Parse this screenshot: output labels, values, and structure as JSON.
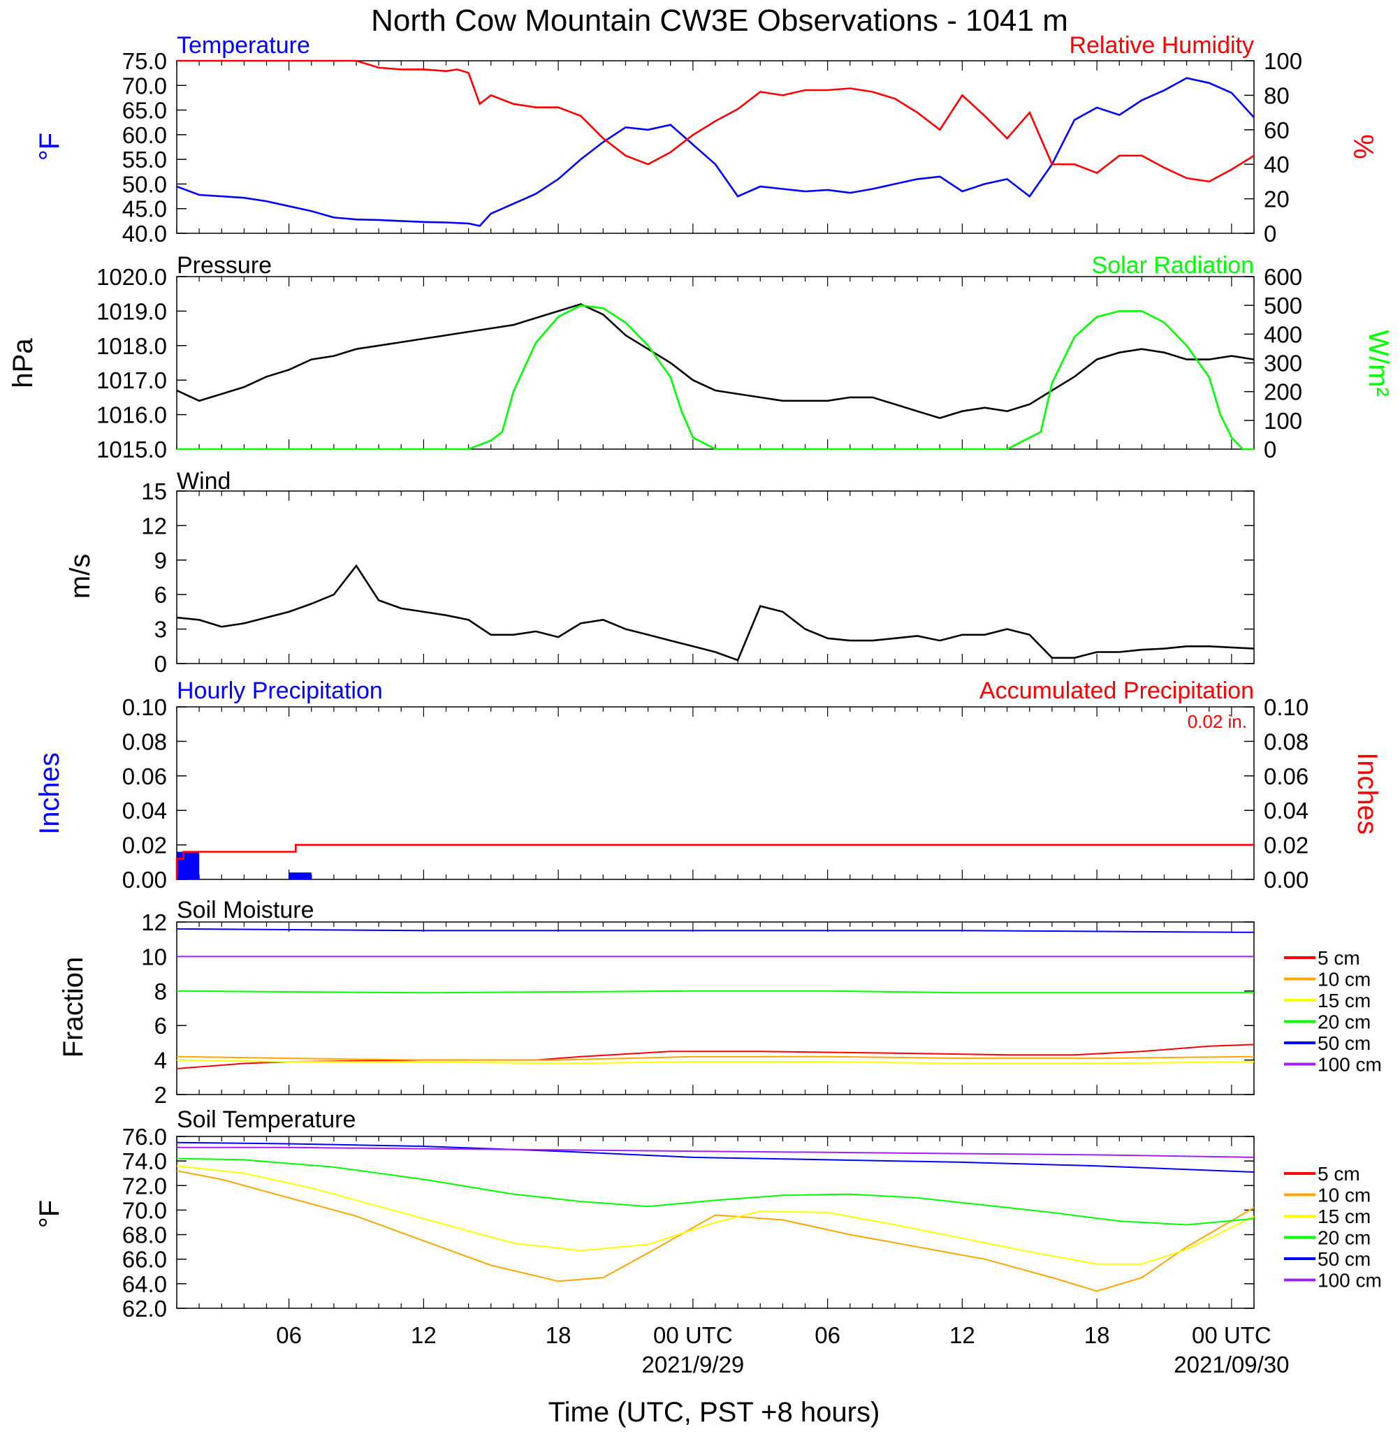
{
  "title": "North Cow Mountain CW3E Observations - 1041 m",
  "x_axis": {
    "title": "Time (UTC, PST +8 hours)",
    "tick_labels": [
      "06",
      "12",
      "18",
      "00 UTC",
      "06",
      "12",
      "18",
      "00 UTC"
    ],
    "tick_hours": [
      6,
      12,
      18,
      24,
      30,
      36,
      42,
      48
    ],
    "date_labels": [
      {
        "hour": 24,
        "text": "2021/9/29"
      },
      {
        "hour": 48,
        "text": "2021/09/30"
      }
    ],
    "range_hours": [
      1,
      49
    ]
  },
  "panels": {
    "temperature": {
      "title_left": "Temperature",
      "title_right": "Relative Humidity",
      "ylabel_left": "°F",
      "ylabel_right": "%",
      "left_ticks": [
        "75.0",
        "70.0",
        "65.0",
        "60.0",
        "55.0",
        "50.0",
        "45.0",
        "40.0"
      ],
      "right_ticks": [
        "100",
        "80",
        "60",
        "40",
        "20",
        "0"
      ]
    },
    "pressure": {
      "title_left": "Pressure",
      "title_right": "Solar Radiation",
      "ylabel_left": "hPa",
      "ylabel_right": "W/m²",
      "left_ticks": [
        "1020.0",
        "1019.0",
        "1018.0",
        "1017.0",
        "1016.0",
        "1015.0"
      ],
      "right_ticks": [
        "600",
        "500",
        "400",
        "300",
        "200",
        "100",
        "0"
      ]
    },
    "wind": {
      "title_left": "Wind",
      "ylabel_left": "m/s",
      "left_ticks": [
        "15",
        "12",
        "9",
        "6",
        "3",
        "0"
      ]
    },
    "precip": {
      "title_left": "Hourly Precipitation",
      "title_right": "Accumulated Precipitation",
      "annotation": "0.02 in.",
      "ylabel_left": "Inches",
      "ylabel_right": "Inches",
      "left_ticks": [
        "0.10",
        "0.08",
        "0.06",
        "0.04",
        "0.02",
        "0.00"
      ],
      "right_ticks": [
        "0.10",
        "0.08",
        "0.06",
        "0.04",
        "0.02",
        "0.00"
      ]
    },
    "soil_moisture": {
      "title_left": "Soil Moisture",
      "ylabel_left": "Fraction",
      "left_ticks": [
        "12",
        "10",
        "8",
        "6",
        "4",
        "2"
      ],
      "legend": [
        "5 cm",
        "10 cm",
        "15 cm",
        "20 cm",
        "50 cm",
        "100 cm"
      ]
    },
    "soil_temp": {
      "title_left": "Soil Temperature",
      "ylabel_left": "°F",
      "left_ticks": [
        "76.0",
        "74.0",
        "72.0",
        "70.0",
        "68.0",
        "66.0",
        "64.0",
        "62.0"
      ],
      "legend": [
        "5 cm",
        "10 cm",
        "15 cm",
        "20 cm",
        "50 cm",
        "100 cm"
      ]
    }
  },
  "chart_data": [
    {
      "type": "line",
      "panel": "temperature",
      "x_unit": "hours since 2021-09-28 00 UTC",
      "grid": false,
      "ylim": [
        40,
        75
      ],
      "ylim_right": [
        0,
        100
      ],
      "series": [
        {
          "name": "Temperature",
          "axis": "left",
          "color": "#0000ff",
          "x": [
            1,
            2,
            3,
            4,
            5,
            6,
            7,
            8,
            9,
            10,
            11,
            12,
            13,
            14,
            14.5,
            15,
            16,
            17,
            18,
            19,
            20,
            21,
            22,
            23,
            24,
            25,
            26,
            27,
            28,
            29,
            30,
            31,
            32,
            33,
            34,
            35,
            36,
            37,
            38,
            39,
            40,
            41,
            42,
            43,
            44,
            45,
            46,
            47,
            48,
            49
          ],
          "y": [
            49.5,
            47.8,
            47.5,
            47.2,
            46.5,
            45.5,
            44.5,
            43.2,
            42.8,
            42.7,
            42.5,
            42.3,
            42.2,
            42.0,
            41.5,
            44.0,
            46.0,
            48.0,
            51.0,
            55.0,
            58.5,
            61.5,
            61.0,
            62.0,
            58.0,
            54.0,
            47.5,
            49.5,
            49.0,
            48.5,
            48.8,
            48.2,
            49.0,
            50.0,
            51.0,
            51.5,
            48.5,
            50.0,
            51.0,
            47.5,
            54.0,
            63.0,
            65.5,
            64.0,
            67.0,
            69.0,
            71.5,
            70.5,
            68.5,
            63.5
          ]
        },
        {
          "name": "Relative Humidity",
          "axis": "right",
          "color": "#ff0000",
          "x": [
            1,
            2,
            3,
            4,
            5,
            6,
            7,
            8,
            9,
            10,
            11,
            12,
            13,
            13.5,
            14,
            14.5,
            15,
            16,
            17,
            18,
            19,
            20,
            21,
            22,
            23,
            24,
            25,
            26,
            27,
            28,
            29,
            30,
            31,
            32,
            33,
            34,
            35,
            36,
            37,
            38,
            39,
            40,
            41,
            42,
            43,
            44,
            45,
            46,
            47,
            48,
            49
          ],
          "y": [
            100,
            100,
            100,
            100,
            100,
            100,
            100,
            100,
            100,
            96,
            95,
            95,
            94,
            95,
            93,
            75,
            80,
            75,
            73,
            73,
            68,
            55,
            45,
            40,
            47,
            57,
            65,
            72,
            82,
            80,
            83,
            83,
            84,
            82,
            78,
            70,
            60,
            80,
            68,
            55,
            70,
            40,
            40,
            35,
            45,
            45,
            38,
            32,
            30,
            37,
            45
          ]
        }
      ]
    },
    {
      "type": "line",
      "panel": "pressure",
      "x_unit": "hours since 2021-09-28 00 UTC",
      "grid": false,
      "ylim": [
        1015,
        1020
      ],
      "ylim_right": [
        0,
        600
      ],
      "series": [
        {
          "name": "Pressure",
          "axis": "left",
          "color": "#000000",
          "x": [
            1,
            2,
            3,
            4,
            5,
            6,
            7,
            8,
            9,
            10,
            11,
            12,
            13,
            14,
            15,
            16,
            17,
            18,
            19,
            20,
            21,
            22,
            23,
            24,
            25,
            26,
            27,
            28,
            29,
            30,
            31,
            32,
            33,
            34,
            35,
            36,
            37,
            38,
            39,
            40,
            41,
            42,
            43,
            44,
            45,
            46,
            47,
            48,
            49
          ],
          "y": [
            1016.7,
            1016.4,
            1016.6,
            1016.8,
            1017.1,
            1017.3,
            1017.6,
            1017.7,
            1017.9,
            1018.0,
            1018.1,
            1018.2,
            1018.3,
            1018.4,
            1018.5,
            1018.6,
            1018.8,
            1019.0,
            1019.2,
            1018.9,
            1018.3,
            1017.9,
            1017.5,
            1017.0,
            1016.7,
            1016.6,
            1016.5,
            1016.4,
            1016.4,
            1016.4,
            1016.5,
            1016.5,
            1016.3,
            1016.1,
            1015.9,
            1016.1,
            1016.2,
            1016.1,
            1016.3,
            1016.7,
            1017.1,
            1017.6,
            1017.8,
            1017.9,
            1017.8,
            1017.6,
            1017.6,
            1017.7,
            1017.6
          ]
        },
        {
          "name": "Solar Radiation",
          "axis": "right",
          "color": "#00ff00",
          "x": [
            1,
            14,
            15,
            15.5,
            16,
            17,
            18,
            19,
            20,
            21,
            22,
            23,
            23.5,
            24,
            25,
            26,
            38,
            39,
            39.5,
            40,
            41,
            42,
            43,
            44,
            45,
            46,
            47,
            47.5,
            48,
            48.5,
            49
          ],
          "y": [
            0,
            0,
            30,
            60,
            200,
            370,
            460,
            500,
            490,
            440,
            360,
            250,
            130,
            40,
            0,
            0,
            0,
            40,
            60,
            230,
            390,
            460,
            480,
            480,
            440,
            360,
            250,
            120,
            40,
            0,
            0
          ]
        }
      ]
    },
    {
      "type": "line",
      "panel": "wind",
      "x_unit": "hours since 2021-09-28 00 UTC",
      "grid": false,
      "ylim": [
        0,
        15
      ],
      "series": [
        {
          "name": "Wind",
          "color": "#000000",
          "x": [
            1,
            2,
            3,
            4,
            5,
            6,
            7,
            8,
            9,
            10,
            11,
            12,
            13,
            14,
            15,
            16,
            17,
            18,
            19,
            20,
            21,
            22,
            23,
            24,
            25,
            26,
            27,
            28,
            29,
            30,
            31,
            32,
            33,
            34,
            35,
            36,
            37,
            38,
            39,
            40,
            41,
            42,
            43,
            44,
            45,
            46,
            47,
            48,
            49
          ],
          "y": [
            4.0,
            3.8,
            3.2,
            3.5,
            4.0,
            4.5,
            5.2,
            6.0,
            8.5,
            5.5,
            4.8,
            4.5,
            4.2,
            3.8,
            2.5,
            2.5,
            2.8,
            2.3,
            3.5,
            3.8,
            3.0,
            2.5,
            2.0,
            1.5,
            1.0,
            0.3,
            5.0,
            4.5,
            3.0,
            2.2,
            2.0,
            2.0,
            2.2,
            2.4,
            2.0,
            2.5,
            2.5,
            3.0,
            2.5,
            0.5,
            0.5,
            1.0,
            1.0,
            1.2,
            1.3,
            1.5,
            1.5,
            1.4,
            1.3
          ]
        }
      ]
    },
    {
      "type": "bar",
      "panel": "precip",
      "x_unit": "hours since 2021-09-28 00 UTC",
      "grid": false,
      "ylim": [
        0,
        0.1
      ],
      "series": [
        {
          "name": "Hourly Precipitation",
          "axis": "left",
          "color": "#0000ff",
          "x": [
            1,
            6
          ],
          "values": [
            0.016,
            0.004
          ]
        },
        {
          "name": "Accumulated Precipitation",
          "axis": "right",
          "type": "line",
          "color": "#ff0000",
          "x": [
            1,
            1,
            1.3,
            1.3,
            6.3,
            6.3,
            49
          ],
          "y": [
            0,
            0.012,
            0.012,
            0.016,
            0.016,
            0.02,
            0.02
          ]
        }
      ]
    },
    {
      "type": "line",
      "panel": "soil_moisture",
      "x_unit": "hours since 2021-09-28 00 UTC",
      "grid": false,
      "ylim": [
        2,
        12
      ],
      "series": [
        {
          "name": "5 cm",
          "color": "#ff0000",
          "x": [
            1,
            4,
            6,
            12,
            17,
            19,
            23,
            27,
            33,
            38,
            41,
            44,
            47,
            49
          ],
          "y": [
            3.5,
            3.8,
            3.9,
            4.0,
            4.0,
            4.2,
            4.5,
            4.5,
            4.4,
            4.3,
            4.3,
            4.5,
            4.8,
            4.9
          ]
        },
        {
          "name": "10 cm",
          "color": "#ffa500",
          "x": [
            1,
            6,
            12,
            18,
            24,
            30,
            36,
            42,
            49
          ],
          "y": [
            4.2,
            4.1,
            4.0,
            4.0,
            4.2,
            4.2,
            4.1,
            4.1,
            4.2
          ]
        },
        {
          "name": "15 cm",
          "color": "#ffff00",
          "x": [
            1,
            6,
            12,
            18,
            24,
            30,
            36,
            42,
            49
          ],
          "y": [
            4.0,
            3.9,
            3.9,
            3.8,
            3.9,
            3.9,
            3.8,
            3.8,
            3.9
          ]
        },
        {
          "name": "20 cm",
          "color": "#00ff00",
          "x": [
            1,
            12,
            24,
            30,
            36,
            49
          ],
          "y": [
            8.0,
            7.9,
            8.0,
            8.0,
            7.9,
            7.9
          ]
        },
        {
          "name": "50 cm",
          "color": "#0000ff",
          "x": [
            1,
            12,
            24,
            36,
            49
          ],
          "y": [
            11.6,
            11.5,
            11.5,
            11.5,
            11.4
          ]
        },
        {
          "name": "100 cm",
          "color": "#a020f0",
          "x": [
            1,
            12,
            24,
            36,
            49
          ],
          "y": [
            10.0,
            10.0,
            10.0,
            10.0,
            10.0
          ]
        }
      ]
    },
    {
      "type": "line",
      "panel": "soil_temp",
      "x_unit": "hours since 2021-09-28 00 UTC",
      "grid": false,
      "ylim": [
        62,
        76
      ],
      "series": [
        {
          "name": "10 cm",
          "color": "#ffa500",
          "x": [
            1,
            3,
            6,
            9,
            12,
            15,
            18,
            20,
            22,
            25,
            28,
            31,
            34,
            37,
            40,
            42,
            44,
            46,
            49
          ],
          "y": [
            73.2,
            72.5,
            71.0,
            69.5,
            67.5,
            65.5,
            64.2,
            64.5,
            66.5,
            69.6,
            69.2,
            68.0,
            67.0,
            66.0,
            64.5,
            63.4,
            64.5,
            67.0,
            70.2
          ]
        },
        {
          "name": "15 cm",
          "color": "#ffff00",
          "x": [
            1,
            4,
            7,
            10,
            13,
            16,
            19,
            22,
            25,
            27,
            30,
            33,
            36,
            39,
            42,
            44,
            46,
            49
          ],
          "y": [
            73.6,
            73.0,
            71.8,
            70.3,
            68.8,
            67.3,
            66.7,
            67.2,
            69.0,
            69.9,
            69.8,
            68.8,
            67.7,
            66.6,
            65.6,
            65.6,
            66.8,
            69.5
          ]
        },
        {
          "name": "20 cm",
          "color": "#00ff00",
          "x": [
            1,
            4,
            8,
            12,
            16,
            19,
            22,
            25,
            28,
            31,
            34,
            37,
            40,
            43,
            46,
            49
          ],
          "y": [
            74.2,
            74.1,
            73.5,
            72.5,
            71.3,
            70.7,
            70.3,
            70.8,
            71.2,
            71.3,
            71.0,
            70.4,
            69.8,
            69.1,
            68.8,
            69.3
          ]
        },
        {
          "name": "50 cm",
          "color": "#0000ff",
          "x": [
            1,
            6,
            12,
            18,
            24,
            30,
            36,
            42,
            49
          ],
          "y": [
            75.5,
            75.4,
            75.2,
            74.8,
            74.3,
            74.1,
            73.9,
            73.6,
            73.1
          ]
        },
        {
          "name": "100 cm",
          "color": "#a020f0",
          "x": [
            1,
            6,
            12,
            18,
            24,
            30,
            36,
            42,
            49
          ],
          "y": [
            75.1,
            75.1,
            75.0,
            74.9,
            74.8,
            74.7,
            74.6,
            74.5,
            74.3
          ]
        }
      ]
    }
  ]
}
